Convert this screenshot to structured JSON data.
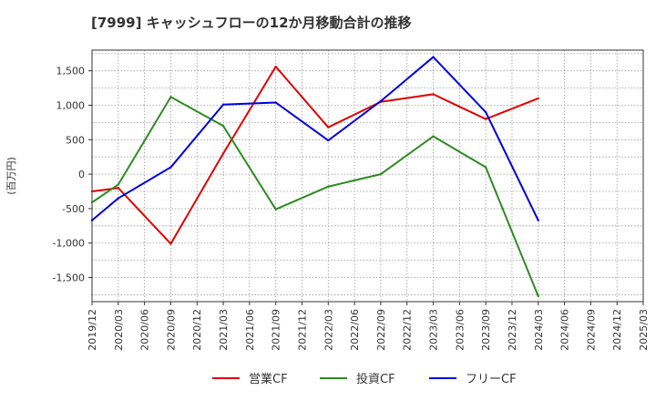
{
  "chart_data": {
    "type": "line",
    "title": "[7999]  キャッシュフローの12か月移動合計の推移",
    "ylabel": "(百万円)",
    "xlabel": "",
    "ylim": [
      -1850,
      1800
    ],
    "yticks": [
      1500,
      1000,
      500,
      0,
      -500,
      -1000,
      -1500
    ],
    "ytick_labels": [
      "1,500",
      "1,000",
      "500",
      "0",
      "-500",
      "-1,000",
      "-1,500"
    ],
    "categories": [
      "2019/12",
      "2020/03",
      "2020/06",
      "2020/09",
      "2020/12",
      "2021/03",
      "2021/06",
      "2021/09",
      "2021/12",
      "2022/03",
      "2022/06",
      "2022/09",
      "2022/12",
      "2023/03",
      "2023/06",
      "2023/09",
      "2023/12",
      "2024/03",
      "2024/06",
      "2024/09",
      "2024/12",
      "2025/03"
    ],
    "grid": true,
    "legend_position": "bottom",
    "series": [
      {
        "name": "営業CF",
        "color": "#e00000",
        "points": [
          [
            "2019/12",
            -250
          ],
          [
            "2020/03",
            -200
          ],
          [
            "2020/09",
            -1010
          ],
          [
            "2021/03",
            300
          ],
          [
            "2021/09",
            1560
          ],
          [
            "2022/03",
            680
          ],
          [
            "2022/09",
            1050
          ],
          [
            "2023/03",
            1160
          ],
          [
            "2023/09",
            800
          ],
          [
            "2024/03",
            1100
          ]
        ]
      },
      {
        "name": "投資CF",
        "color": "#2e8b22",
        "points": [
          [
            "2019/12",
            -410
          ],
          [
            "2020/03",
            -150
          ],
          [
            "2020/09",
            1120
          ],
          [
            "2021/03",
            700
          ],
          [
            "2021/09",
            -510
          ],
          [
            "2022/03",
            -180
          ],
          [
            "2022/09",
            0
          ],
          [
            "2023/03",
            550
          ],
          [
            "2023/09",
            100
          ],
          [
            "2024/03",
            -1770
          ]
        ]
      },
      {
        "name": "フリーCF",
        "color": "#0000dd",
        "points": [
          [
            "2019/12",
            -670
          ],
          [
            "2020/03",
            -350
          ],
          [
            "2020/09",
            100
          ],
          [
            "2021/03",
            1010
          ],
          [
            "2021/09",
            1040
          ],
          [
            "2022/03",
            490
          ],
          [
            "2022/09",
            1060
          ],
          [
            "2023/03",
            1700
          ],
          [
            "2023/09",
            900
          ],
          [
            "2024/03",
            -670
          ]
        ]
      }
    ]
  }
}
